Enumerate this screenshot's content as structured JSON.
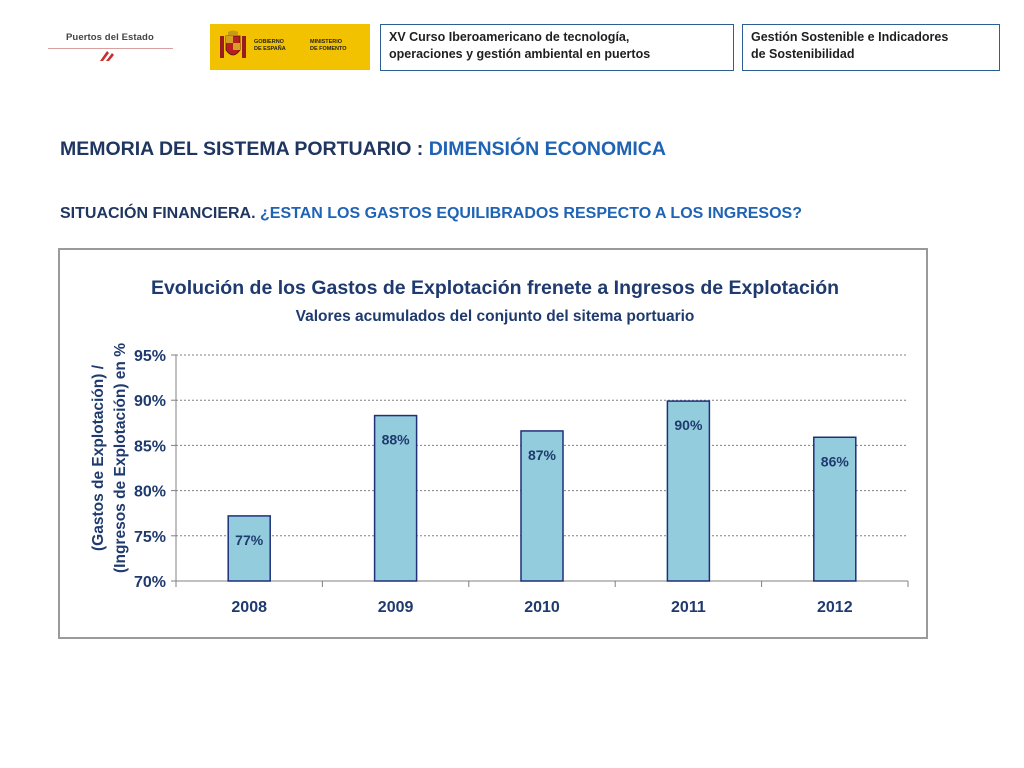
{
  "header": {
    "logo_puertos": "Puertos del Estado",
    "logo_gob_left": [
      "GOBIERNO",
      "DE ESPAÑA"
    ],
    "logo_gob_right": [
      "MINISTERIO",
      "DE FOMENTO"
    ],
    "box1_line1": "XV Curso Iberoamericano de tecnología,",
    "box1_line2": "operaciones y gestión ambiental en puertos",
    "box2_line1": "Gestión Sostenible e Indicadores",
    "box2_line2": "de Sostenibilidad"
  },
  "titles": {
    "main_dark": "MEMORIA DEL SISTEMA PORTUARIO : ",
    "main_blue": "DIMENSIÓN ECONOMICA",
    "sub_dark": "SITUACIÓN FINANCIERA. ",
    "sub_blue": "¿ESTAN LOS GASTOS EQUILIBRADOS RESPECTO A LOS INGRESOS?"
  },
  "chart_data": {
    "type": "bar",
    "title": "Evolución de los Gastos de Explotación frenete a Ingresos de Explotación",
    "subtitle": "Valores acumulados del conjunto del sitema portuario",
    "ylabel_line1": "(Gastos de Explotación) /",
    "ylabel_line2": "(Ingresos de Explotación) en %",
    "categories": [
      "2008",
      "2009",
      "2010",
      "2011",
      "2012"
    ],
    "values": [
      77.2,
      88.3,
      86.6,
      89.9,
      85.9
    ],
    "labels": [
      "77%",
      "88%",
      "87%",
      "90%",
      "86%"
    ],
    "ylim": [
      70,
      95
    ],
    "yticks": [
      70,
      75,
      80,
      85,
      90,
      95
    ],
    "ytick_labels": [
      "70%",
      "75%",
      "80%",
      "85%",
      "90%",
      "95%"
    ],
    "grid": true,
    "colors": {
      "bar": "#93cddd",
      "bar_edge": "#1f2f7a",
      "text": "#1f3a6e",
      "grid": "#808080"
    }
  }
}
